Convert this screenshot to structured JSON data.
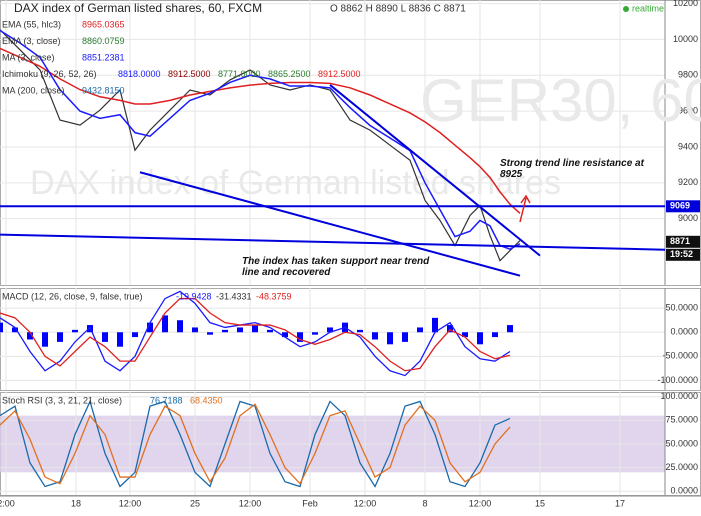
{
  "chart_data": [
    {
      "type": "line",
      "title": "DAX index of German listed shares, 60, FXCM",
      "subtitle": "O 8862 H 8890 L 8836 C 8871",
      "status": "realtime",
      "watermark": [
        "GER30, 60",
        "DAX index of German listed shares"
      ],
      "indicators": [
        {
          "name": "EMA (55, hlc3)",
          "values": [
            {
              "text": "8965.0365",
              "color": "#e02020"
            }
          ]
        },
        {
          "name": "EMA (3, close)",
          "values": [
            {
              "text": "8860.0759",
              "color": "#2e7d32"
            }
          ]
        },
        {
          "name": "MA (3, close)",
          "values": [
            {
              "text": "8851.2381",
              "color": "#1a1aff"
            }
          ]
        },
        {
          "name": "Ichimoku (9, 26, 52, 26)",
          "values": [
            {
              "text": "8818.0000",
              "color": "#1a1aff"
            },
            {
              "text": "8912.5000",
              "color": "#8b0000"
            },
            {
              "text": "8771.0000",
              "color": "#2e7d32"
            },
            {
              "text": "8865.2500",
              "color": "#2e7d32"
            },
            {
              "text": "8912.5000",
              "color": "#e02020"
            }
          ]
        },
        {
          "name": "MA (200, close)",
          "values": [
            {
              "text": "9432.8150",
              "color": "#1a6aaa"
            }
          ]
        }
      ],
      "xlim": [
        0,
        665
      ],
      "ylim": [
        8630,
        10220
      ],
      "yticks": [
        9000,
        9200,
        9400,
        9600,
        9800,
        10000,
        10200
      ],
      "x": [
        0,
        20,
        40,
        60,
        80,
        100,
        120,
        135,
        150,
        170,
        190,
        210,
        230,
        250,
        270,
        290,
        310,
        330,
        350,
        370,
        390,
        410,
        425,
        440,
        455,
        470,
        480,
        490,
        500,
        510,
        520
      ],
      "series": [
        {
          "color": "#333333",
          "width": 1.2,
          "values": [
            10054,
            9942,
            9830,
            9550,
            9522,
            9606,
            9718,
            9382,
            9494,
            9606,
            9718,
            9690,
            9774,
            9830,
            9746,
            9718,
            9746,
            9718,
            9550,
            9494,
            9410,
            9326,
            9102,
            8990,
            8850,
            9018,
            9074,
            8906,
            8766,
            8822,
            8878
          ]
        },
        {
          "color": "#e02020",
          "width": 1.5,
          "values": [
            9950,
            9900,
            9850,
            9780,
            9720,
            9680,
            9660,
            9640,
            9640,
            9660,
            9690,
            9710,
            9730,
            9745,
            9755,
            9760,
            9760,
            9755,
            9730,
            9690,
            9640,
            9590,
            9540,
            9480,
            9410,
            9340,
            9290,
            9230,
            9150,
            9080,
            9030
          ]
        },
        {
          "color": "#1a1aff",
          "width": 1.5,
          "values": [
            10050,
            9980,
            9900,
            9720,
            9600,
            9560,
            9580,
            9480,
            9460,
            9560,
            9660,
            9700,
            9760,
            9800,
            9780,
            9740,
            9740,
            9730,
            9620,
            9520,
            9450,
            9380,
            9200,
            9050,
            8900,
            8930,
            8990,
            8960,
            8850,
            8830,
            8860
          ]
        }
      ],
      "trend_lines": [
        {
          "color": "#0000dd",
          "x": [
            0,
            665
          ],
          "y": [
            9069,
            9069
          ]
        },
        {
          "color": "#0000dd",
          "x": [
            0,
            665
          ],
          "y": [
            8911,
            8827
          ]
        },
        {
          "color": "#0000dd",
          "x": [
            140,
            520
          ],
          "y": [
            9259,
            8682
          ]
        },
        {
          "color": "#0000dd",
          "x": [
            330,
            540
          ],
          "y": [
            9746,
            8794
          ]
        }
      ],
      "tags": [
        {
          "value": 9069,
          "color": "#0000dd"
        },
        {
          "value": 8871,
          "color": "#111111"
        }
      ],
      "time_tag": "19:52",
      "annotations": [
        "Strong trend line resistance at 8925",
        "The index has taken support near trend line and recovered"
      ]
    },
    {
      "type": "macd",
      "title": "MACD (12, 26, close, 9, false, true)",
      "readout": [
        {
          "text": "-19.9428",
          "color": "#1a1aff"
        },
        {
          "text": "-31.4331",
          "color": "#333333"
        },
        {
          "text": "-48.3759",
          "color": "#e02020"
        }
      ],
      "xlim": [
        0,
        665
      ],
      "ylim": [
        -120,
        92
      ],
      "yticks": [
        {
          "value": 50,
          "label": "50.0000"
        },
        {
          "value": 0,
          "label": "0.0000"
        },
        {
          "value": -50,
          "label": "-50.0000"
        },
        {
          "value": -100,
          "label": "-100.0000"
        }
      ],
      "x": [
        0,
        15,
        30,
        45,
        60,
        75,
        90,
        105,
        120,
        135,
        150,
        165,
        180,
        195,
        210,
        225,
        240,
        255,
        270,
        285,
        300,
        315,
        330,
        345,
        360,
        375,
        390,
        405,
        420,
        435,
        450,
        465,
        480,
        495,
        510
      ],
      "series": [
        {
          "kind": "bar",
          "color": "#0000ff",
          "values": [
            20,
            10,
            -15,
            -30,
            -20,
            5,
            15,
            -20,
            -30,
            -10,
            20,
            35,
            25,
            10,
            -5,
            5,
            10,
            15,
            5,
            -10,
            -20,
            -5,
            10,
            20,
            5,
            -15,
            -25,
            -20,
            10,
            30,
            15,
            -10,
            -25,
            -10,
            15
          ]
        },
        {
          "kind": "line",
          "color": "#1a1aff",
          "values": [
            30,
            10,
            -40,
            -80,
            -60,
            -20,
            10,
            -60,
            -80,
            -50,
            20,
            70,
            85,
            60,
            20,
            10,
            15,
            20,
            10,
            -10,
            -30,
            -20,
            0,
            10,
            -10,
            -50,
            -80,
            -90,
            -60,
            0,
            20,
            -30,
            -55,
            -60,
            -40
          ]
        },
        {
          "kind": "line",
          "color": "#e02020",
          "values": [
            40,
            30,
            0,
            -50,
            -70,
            -40,
            -10,
            -30,
            -60,
            -60,
            -10,
            40,
            70,
            70,
            40,
            20,
            15,
            15,
            15,
            5,
            -15,
            -25,
            -15,
            0,
            -5,
            -30,
            -60,
            -80,
            -75,
            -30,
            5,
            -10,
            -40,
            -55,
            -48
          ]
        }
      ]
    },
    {
      "type": "stoch",
      "title": "Stoch RSI (3, 3, 21, 21, close)",
      "readout": [
        {
          "text": "76.7188",
          "color": "#1a6aaa"
        },
        {
          "text": "68.4350",
          "color": "#e07020"
        }
      ],
      "xlim": [
        0,
        665
      ],
      "ylim": [
        -4,
        105
      ],
      "band": [
        20,
        80
      ],
      "band_color": "#d9cbe8",
      "yticks": [
        {
          "value": 100,
          "label": "100.0000"
        },
        {
          "value": 75,
          "label": "75.0000"
        },
        {
          "value": 50,
          "label": "50.0000"
        },
        {
          "value": 25,
          "label": "25.0000"
        },
        {
          "value": 0,
          "label": "0.0000"
        }
      ],
      "xticks": [
        {
          "value": 6,
          "label": "2:00"
        },
        {
          "value": 76,
          "label": "18"
        },
        {
          "value": 130,
          "label": "12:00"
        },
        {
          "value": 195,
          "label": "25"
        },
        {
          "value": 250,
          "label": "12:00"
        },
        {
          "value": 310,
          "label": "Feb"
        },
        {
          "value": 365,
          "label": "12:00"
        },
        {
          "value": 425,
          "label": "8"
        },
        {
          "value": 480,
          "label": "12:00"
        },
        {
          "value": 540,
          "label": "15"
        },
        {
          "value": 620,
          "label": "17"
        }
      ],
      "x": [
        0,
        15,
        30,
        45,
        60,
        75,
        90,
        105,
        120,
        135,
        150,
        165,
        180,
        195,
        210,
        225,
        240,
        255,
        270,
        285,
        300,
        315,
        330,
        345,
        360,
        375,
        390,
        405,
        420,
        435,
        450,
        465,
        480,
        495,
        510
      ],
      "series": [
        {
          "kind": "line",
          "color": "#1a6aaa",
          "values": [
            80,
            90,
            30,
            5,
            10,
            60,
            95,
            40,
            5,
            20,
            90,
            95,
            60,
            20,
            5,
            50,
            95,
            90,
            40,
            10,
            5,
            60,
            95,
            80,
            30,
            5,
            40,
            90,
            95,
            60,
            10,
            5,
            30,
            70,
            77
          ]
        },
        {
          "kind": "line",
          "color": "#e07020",
          "values": [
            70,
            85,
            55,
            15,
            8,
            40,
            80,
            60,
            15,
            15,
            60,
            90,
            80,
            40,
            10,
            35,
            80,
            92,
            60,
            25,
            8,
            40,
            80,
            85,
            50,
            15,
            25,
            70,
            90,
            75,
            30,
            10,
            20,
            50,
            68
          ]
        }
      ]
    }
  ]
}
